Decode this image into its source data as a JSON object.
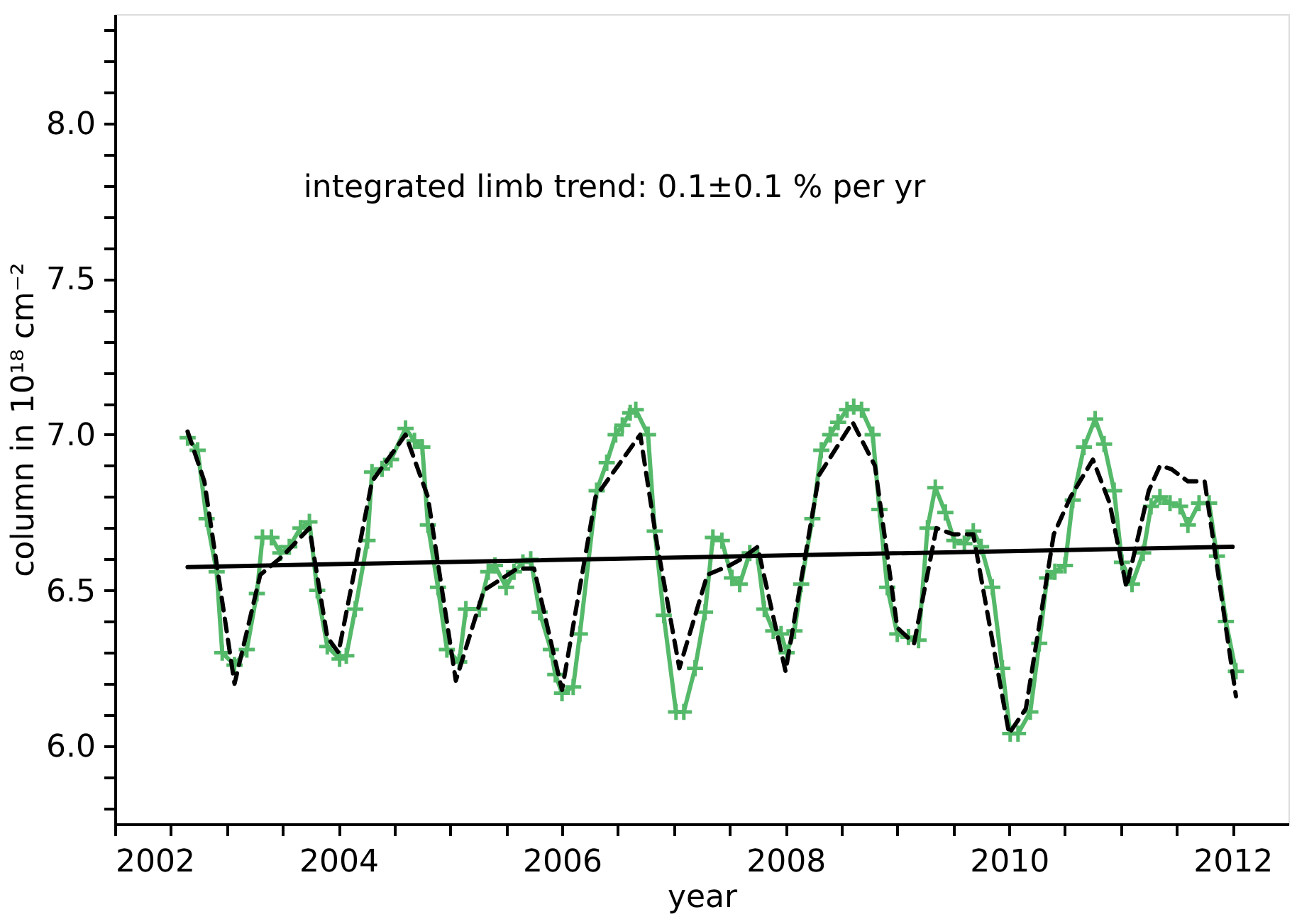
{
  "chart_data": {
    "type": "line",
    "xlabel": "year",
    "ylabel": "column in 10¹⁸ cm⁻²",
    "annotations": [
      "integrated limb trend: 0.1±0.1 % per yr"
    ],
    "xlim": [
      2002,
      2012.5
    ],
    "ylim": [
      5.75,
      8.35
    ],
    "xticks": [
      2002,
      {
        "value": 2002.5,
        "label": null
      },
      {
        "value": 2003,
        "label": null
      },
      {
        "value": 2003.5,
        "label": null
      },
      2004,
      {
        "value": 2004.5,
        "label": null
      },
      {
        "value": 2005,
        "label": null
      },
      {
        "value": 2005.5,
        "label": null
      },
      2006,
      {
        "value": 2006.5,
        "label": null
      },
      {
        "value": 2007,
        "label": null
      },
      {
        "value": 2007.5,
        "label": null
      },
      2008,
      {
        "value": 2008.5,
        "label": null
      },
      {
        "value": 2009,
        "label": null
      },
      {
        "value": 2009.5,
        "label": null
      },
      2010,
      {
        "value": 2010.5,
        "label": null
      },
      {
        "value": 2011,
        "label": null
      },
      {
        "value": 2011.5,
        "label": null
      },
      2012
    ],
    "yticks": [
      {
        "value": 5.8,
        "label": null
      },
      {
        "value": 5.9,
        "label": null
      },
      {
        "value": 6,
        "label": "6.0"
      },
      {
        "value": 6.1,
        "label": null
      },
      {
        "value": 6.2,
        "label": null
      },
      {
        "value": 6.3,
        "label": null
      },
      {
        "value": 6.4,
        "label": null
      },
      6.5,
      {
        "value": 6.6,
        "label": null
      },
      {
        "value": 6.7,
        "label": null
      },
      {
        "value": 6.8,
        "label": null
      },
      {
        "value": 6.9,
        "label": null
      },
      {
        "value": 7,
        "label": "7.0"
      },
      {
        "value": 7.1,
        "label": null
      },
      {
        "value": 7.2,
        "label": null
      },
      {
        "value": 7.3,
        "label": null
      },
      {
        "value": 7.4,
        "label": null
      },
      7.5,
      {
        "value": 7.6,
        "label": null
      },
      {
        "value": 7.7,
        "label": null
      },
      {
        "value": 7.8,
        "label": null
      },
      {
        "value": 7.9,
        "label": null
      },
      {
        "value": 8,
        "label": "8.0"
      },
      {
        "value": 8.1,
        "label": null
      },
      {
        "value": 8.2,
        "label": null
      },
      {
        "value": 8.3,
        "label": null
      }
    ],
    "grid": false,
    "series": [
      {
        "color": "#55b96a",
        "marker": "cross",
        "line_style": "solid",
        "x": [
          2002.65,
          2002.74,
          2002.82,
          2002.91,
          2002.96,
          2003.07,
          2003.18,
          2003.27,
          2003.32,
          2003.4,
          2003.48,
          2003.56,
          2003.66,
          2003.74,
          2003.81,
          2003.9,
          2004.01,
          2004.07,
          2004.15,
          2004.26,
          2004.3,
          2004.39,
          2004.47,
          2004.6,
          2004.68,
          2004.75,
          2004.8,
          2004.89,
          2004.97,
          2005.08,
          2005.14,
          2005.26,
          2005.34,
          2005.4,
          2005.5,
          2005.57,
          2005.65,
          2005.72,
          2005.8,
          2005.9,
          2005.94,
          2006.0,
          2006.1,
          2006.16,
          2006.31,
          2006.4,
          2006.48,
          2006.54,
          2006.61,
          2006.66,
          2006.77,
          2006.83,
          2006.91,
          2007.02,
          2007.09,
          2007.19,
          2007.28,
          2007.35,
          2007.43,
          2007.52,
          2007.59,
          2007.68,
          2007.75,
          2007.81,
          2007.89,
          2007.96,
          2008.01,
          2008.08,
          2008.14,
          2008.24,
          2008.32,
          2008.4,
          2008.47,
          2008.55,
          2008.61,
          2008.68,
          2008.78,
          2008.84,
          2008.91,
          2009.0,
          2009.1,
          2009.19,
          2009.27,
          2009.34,
          2009.43,
          2009.51,
          2009.6,
          2009.68,
          2009.75,
          2009.85,
          2009.94,
          2010.01,
          2010.08,
          2010.19,
          2010.27,
          2010.34,
          2010.41,
          2010.5,
          2010.57,
          2010.67,
          2010.77,
          2010.85,
          2010.94,
          2011.01,
          2011.1,
          2011.2,
          2011.27,
          2011.35,
          2011.44,
          2011.53,
          2011.6,
          2011.7,
          2011.79,
          2011.86,
          2011.94,
          2012.03
        ],
        "values": [
          6.99,
          6.95,
          6.73,
          6.56,
          6.3,
          6.26,
          6.31,
          6.49,
          6.67,
          6.67,
          6.62,
          6.64,
          6.7,
          6.72,
          6.5,
          6.32,
          6.28,
          6.29,
          6.44,
          6.66,
          6.88,
          6.89,
          6.92,
          7.02,
          6.98,
          6.96,
          6.71,
          6.51,
          6.31,
          6.27,
          6.44,
          6.44,
          6.56,
          6.58,
          6.51,
          6.56,
          6.59,
          6.6,
          6.43,
          6.31,
          6.23,
          6.17,
          6.19,
          6.36,
          6.82,
          6.91,
          7.0,
          7.03,
          7.07,
          7.08,
          7.0,
          6.69,
          6.42,
          6.11,
          6.11,
          6.25,
          6.43,
          6.67,
          6.66,
          6.54,
          6.52,
          6.62,
          6.61,
          6.44,
          6.37,
          6.36,
          6.3,
          6.37,
          6.52,
          6.73,
          6.95,
          7.0,
          7.04,
          7.08,
          7.09,
          7.08,
          7.0,
          6.76,
          6.51,
          6.36,
          6.35,
          6.34,
          6.7,
          6.83,
          6.75,
          6.66,
          6.65,
          6.69,
          6.64,
          6.51,
          6.25,
          6.04,
          6.04,
          6.11,
          6.33,
          6.54,
          6.56,
          6.58,
          6.79,
          6.96,
          7.05,
          6.97,
          6.82,
          6.59,
          6.52,
          6.62,
          6.77,
          6.8,
          6.78,
          6.77,
          6.71,
          6.78,
          6.78,
          6.61,
          6.4,
          6.24
        ]
      },
      {
        "color": "#000000",
        "marker": "none",
        "line_style": "dashed",
        "x": [
          2002.65,
          2002.8,
          2003.07,
          2003.3,
          2003.5,
          2003.74,
          2003.9,
          2004.0,
          2004.3,
          2004.6,
          2004.8,
          2005.05,
          2005.3,
          2005.6,
          2005.75,
          2006.0,
          2006.3,
          2006.5,
          2006.7,
          2006.85,
          2007.05,
          2007.3,
          2007.5,
          2007.6,
          2007.75,
          2008.0,
          2008.3,
          2008.6,
          2008.8,
          2009.0,
          2009.15,
          2009.35,
          2009.5,
          2009.68,
          2010.0,
          2010.15,
          2010.4,
          2010.55,
          2010.75,
          2010.9,
          2011.05,
          2011.25,
          2011.35,
          2011.45,
          2011.6,
          2011.75,
          2012.03
        ],
        "values": [
          7.01,
          6.85,
          6.2,
          6.55,
          6.61,
          6.7,
          6.35,
          6.3,
          6.85,
          7.0,
          6.8,
          6.21,
          6.5,
          6.57,
          6.57,
          6.18,
          6.8,
          6.9,
          7.0,
          6.65,
          6.25,
          6.55,
          6.58,
          6.6,
          6.64,
          6.24,
          6.87,
          7.04,
          6.9,
          6.38,
          6.33,
          6.7,
          6.68,
          6.68,
          6.04,
          6.12,
          6.68,
          6.8,
          6.92,
          6.78,
          6.51,
          6.82,
          6.9,
          6.89,
          6.85,
          6.85,
          6.16
        ]
      },
      {
        "color": "#000000",
        "marker": "none",
        "line_style": "solid",
        "x": [
          2002.65,
          2012.0
        ],
        "values": [
          6.575,
          6.64
        ]
      }
    ]
  }
}
